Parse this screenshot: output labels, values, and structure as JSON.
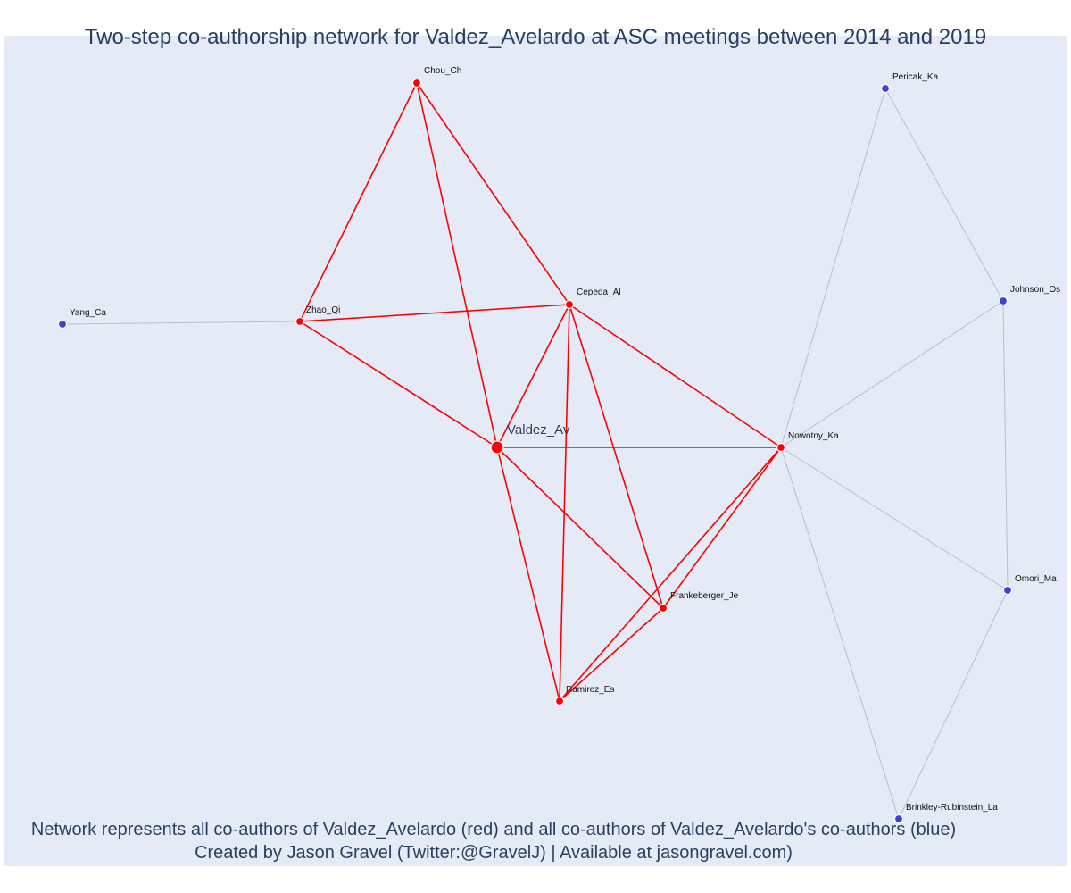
{
  "title": "Two-step co-authorship network for Valdez_Avelardo at ASC meetings between 2014 and 2019",
  "footer": {
    "line1": "Network represents all co-authors of Valdez_Avelardo (red) and all co-authors of Valdez_Avelardo's co-authors (blue)",
    "line2": "Created by Jason Gravel (Twitter:@GravelJ) | Available at jasongravel.com)"
  },
  "colors": {
    "background": "#e5ebf6",
    "direct": "#ff0000",
    "indirect": "#3f3fe0",
    "indirect_edge": "#b8bccf",
    "text": "#2a3f5f"
  },
  "chart_data": {
    "type": "network",
    "nodes": [
      {
        "id": "Valdez_Av",
        "label": "Valdez_Av",
        "group": "ego"
      },
      {
        "id": "Chou_Ch",
        "label": "Chou_Ch",
        "group": "direct"
      },
      {
        "id": "Zhao_Qi",
        "label": "Zhao_Qi",
        "group": "direct"
      },
      {
        "id": "Cepeda_Al",
        "label": "Cepeda_Al",
        "group": "direct"
      },
      {
        "id": "Nowotny_Ka",
        "label": "Nowotny_Ka",
        "group": "direct"
      },
      {
        "id": "Frankeberger_Je",
        "label": "Frankeberger_Je",
        "group": "direct"
      },
      {
        "id": "Ramirez_Es",
        "label": "Ramirez_Es",
        "group": "direct"
      },
      {
        "id": "Yang_Ca",
        "label": "Yang_Ca",
        "group": "indirect"
      },
      {
        "id": "Pericak_Ka",
        "label": "Pericak_Ka",
        "group": "indirect"
      },
      {
        "id": "Johnson_Os",
        "label": "Johnson_Os",
        "group": "indirect"
      },
      {
        "id": "Omori_Ma",
        "label": "Omori_Ma",
        "group": "indirect"
      },
      {
        "id": "Brinkley-Rubinstein_La",
        "label": "Brinkley-Rubinstein_La",
        "group": "indirect"
      }
    ],
    "edges": [
      {
        "source": "Chou_Ch",
        "target": "Zhao_Qi",
        "group": "direct"
      },
      {
        "source": "Chou_Ch",
        "target": "Valdez_Av",
        "group": "direct"
      },
      {
        "source": "Chou_Ch",
        "target": "Cepeda_Al",
        "group": "direct"
      },
      {
        "source": "Zhao_Qi",
        "target": "Cepeda_Al",
        "group": "direct"
      },
      {
        "source": "Zhao_Qi",
        "target": "Valdez_Av",
        "group": "direct"
      },
      {
        "source": "Cepeda_Al",
        "target": "Valdez_Av",
        "group": "direct"
      },
      {
        "source": "Cepeda_Al",
        "target": "Nowotny_Ka",
        "group": "direct"
      },
      {
        "source": "Cepeda_Al",
        "target": "Frankeberger_Je",
        "group": "direct"
      },
      {
        "source": "Cepeda_Al",
        "target": "Ramirez_Es",
        "group": "direct"
      },
      {
        "source": "Valdez_Av",
        "target": "Nowotny_Ka",
        "group": "direct"
      },
      {
        "source": "Valdez_Av",
        "target": "Frankeberger_Je",
        "group": "direct"
      },
      {
        "source": "Valdez_Av",
        "target": "Ramirez_Es",
        "group": "direct"
      },
      {
        "source": "Nowotny_Ka",
        "target": "Frankeberger_Je",
        "group": "direct"
      },
      {
        "source": "Nowotny_Ka",
        "target": "Ramirez_Es",
        "group": "direct"
      },
      {
        "source": "Frankeberger_Je",
        "target": "Ramirez_Es",
        "group": "direct"
      },
      {
        "source": "Yang_Ca",
        "target": "Zhao_Qi",
        "group": "indirect"
      },
      {
        "source": "Nowotny_Ka",
        "target": "Pericak_Ka",
        "group": "indirect"
      },
      {
        "source": "Nowotny_Ka",
        "target": "Johnson_Os",
        "group": "indirect"
      },
      {
        "source": "Nowotny_Ka",
        "target": "Omori_Ma",
        "group": "indirect"
      },
      {
        "source": "Nowotny_Ka",
        "target": "Brinkley-Rubinstein_La",
        "group": "indirect"
      },
      {
        "source": "Pericak_Ka",
        "target": "Johnson_Os",
        "group": "indirect"
      },
      {
        "source": "Johnson_Os",
        "target": "Omori_Ma",
        "group": "indirect"
      },
      {
        "source": "Omori_Ma",
        "target": "Brinkley-Rubinstein_La",
        "group": "indirect"
      }
    ]
  }
}
